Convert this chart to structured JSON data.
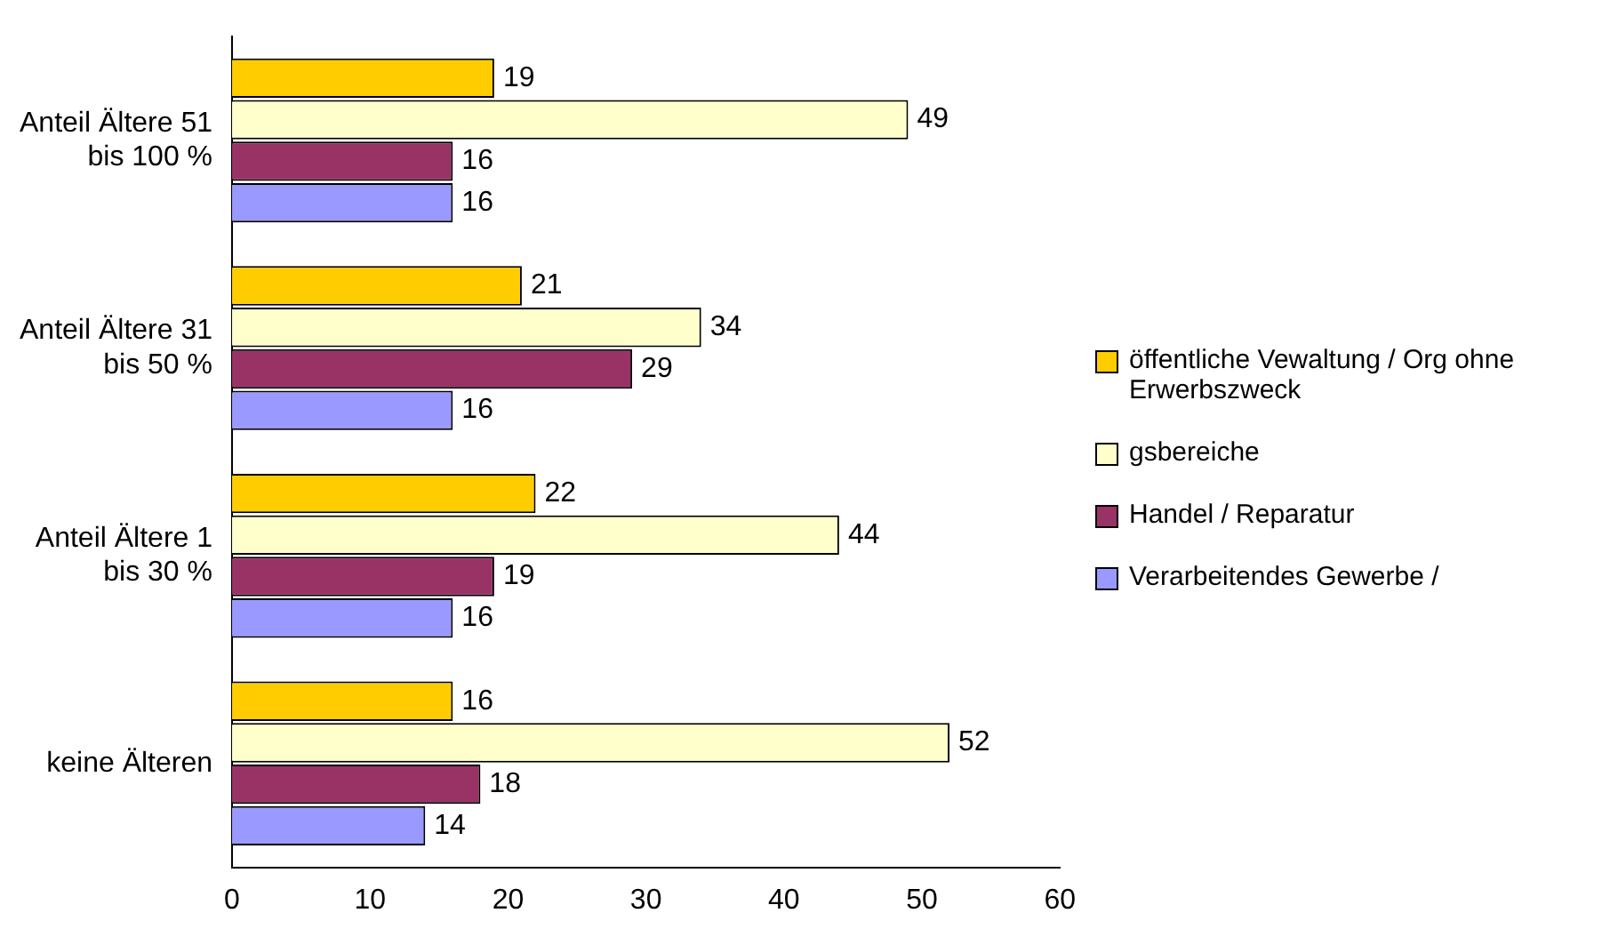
{
  "chart_data": {
    "type": "bar",
    "orientation": "horizontal",
    "categories": [
      "Anteil Ältere 51 bis 100 %",
      "Anteil Ältere 31 bis 50 %",
      "Anteil Ältere 1 bis 30 %",
      "keine Älteren"
    ],
    "series": [
      {
        "name": "öffentliche Vewaltung / Org ohne Erwerbszweck",
        "color": "#ffcc00",
        "values": [
          19,
          21,
          22,
          16
        ]
      },
      {
        "name": "gsbereiche",
        "color": "#ffffcc",
        "values": [
          49,
          34,
          44,
          52
        ]
      },
      {
        "name": "Handel / Reparatur",
        "color": "#993366",
        "values": [
          16,
          29,
          19,
          18
        ]
      },
      {
        "name": "Verarbeitendes Gewerbe /",
        "color": "#9999ff",
        "values": [
          16,
          16,
          16,
          14
        ]
      }
    ],
    "xlim": [
      0,
      60
    ],
    "xticks": [
      0,
      10,
      20,
      30,
      40,
      50,
      60
    ],
    "grid": false,
    "legend": "right",
    "data_labels": true
  }
}
